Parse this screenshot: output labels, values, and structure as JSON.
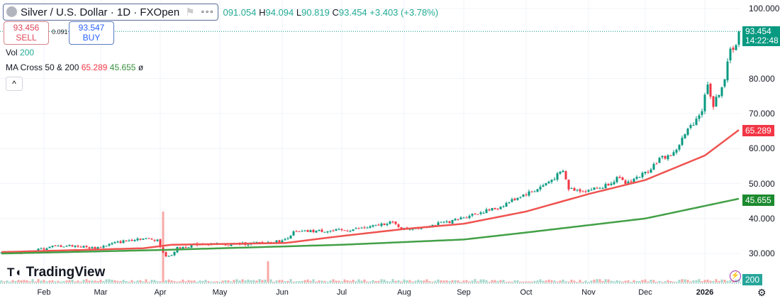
{
  "header": {
    "symbol": "Silver / U.S. Dollar · 1D · FXOpen",
    "ohlc_open": "091.054",
    "ohlc_high_label": "H",
    "ohlc_high": "94.094",
    "ohlc_low_label": "L",
    "ohlc_low": "90.819",
    "ohlc_close_label": "C",
    "ohlc_close": "93.454",
    "change": "+3.403 (+3.78%)",
    "more": "∘∘∘"
  },
  "trade": {
    "sell_price": "93.456",
    "sell_label": "SELL",
    "spread": "0.091",
    "buy_price": "93.547",
    "buy_label": "BUY"
  },
  "legend": {
    "vol_label": "Vol",
    "vol_value": "200",
    "ma_label": "MA Cross 50 & 200",
    "ma50": "65.289",
    "ma200": "45.655",
    "ma_extra": "ø",
    "collapse": "^"
  },
  "price_tag": {
    "price": "93.454",
    "countdown": "14:22:48"
  },
  "ma50_tag": "65.289",
  "ma200_tag": "45.655",
  "vol_tag": "200",
  "brand": "TradingView",
  "colors": {
    "up": "#089981",
    "down": "#f23645",
    "ma50": "#ef5350",
    "ma200": "#43a047"
  },
  "chart_data": {
    "type": "candlestick",
    "title": "Silver / U.S. Dollar · 1D · FXOpen",
    "y_ticks": [
      "100.000",
      "80.000",
      "70.000",
      "60.000",
      "50.000",
      "40.000",
      "30.000"
    ],
    "y_tick_values": [
      100,
      80,
      70,
      60,
      50,
      40,
      30
    ],
    "ylim": [
      30,
      100
    ],
    "x_ticks": [
      "Feb",
      "Mar",
      "Apr",
      "May",
      "Jun",
      "Jul",
      "Aug",
      "Sep",
      "Oct",
      "Nov",
      "Dec",
      "2026"
    ],
    "x_tick_days": [
      15,
      35,
      56,
      77,
      99,
      120,
      142,
      163,
      185,
      207,
      227,
      248
    ],
    "total_days": 261,
    "close_anchors": [
      [
        0,
        30.2
      ],
      [
        10,
        30.5
      ],
      [
        18,
        32
      ],
      [
        25,
        32.3
      ],
      [
        33,
        31.5
      ],
      [
        40,
        33
      ],
      [
        48,
        34.3
      ],
      [
        55,
        34
      ],
      [
        57,
        30
      ],
      [
        59,
        29
      ],
      [
        62,
        31.5
      ],
      [
        70,
        32.8
      ],
      [
        80,
        32.5
      ],
      [
        90,
        33
      ],
      [
        99,
        33.5
      ],
      [
        103,
        36
      ],
      [
        112,
        36.5
      ],
      [
        120,
        36.5
      ],
      [
        130,
        37.5
      ],
      [
        137,
        39
      ],
      [
        142,
        37
      ],
      [
        150,
        37.8
      ],
      [
        160,
        39.5
      ],
      [
        165,
        41
      ],
      [
        175,
        43
      ],
      [
        183,
        46.5
      ],
      [
        188,
        48
      ],
      [
        193,
        50.5
      ],
      [
        198,
        53.5
      ],
      [
        200,
        48.5
      ],
      [
        206,
        48
      ],
      [
        212,
        49
      ],
      [
        217,
        51.5
      ],
      [
        220,
        50
      ],
      [
        227,
        53
      ],
      [
        232,
        57
      ],
      [
        237,
        58.5
      ],
      [
        241,
        64
      ],
      [
        244,
        67.5
      ],
      [
        247,
        71
      ],
      [
        249,
        79
      ],
      [
        251,
        72
      ],
      [
        253,
        76
      ],
      [
        255,
        80
      ],
      [
        257,
        88
      ],
      [
        259,
        90
      ],
      [
        260,
        93.454
      ]
    ],
    "ma50_anchors": [
      [
        0,
        30.4
      ],
      [
        50,
        31.5
      ],
      [
        60,
        32.5
      ],
      [
        100,
        33
      ],
      [
        120,
        35
      ],
      [
        142,
        37
      ],
      [
        163,
        38.5
      ],
      [
        185,
        42
      ],
      [
        207,
        47
      ],
      [
        227,
        51
      ],
      [
        248,
        58
      ],
      [
        260,
        65.289
      ]
    ],
    "ma200_anchors": [
      [
        0,
        30
      ],
      [
        56,
        31
      ],
      [
        120,
        32.5
      ],
      [
        163,
        34
      ],
      [
        185,
        36
      ],
      [
        227,
        40
      ],
      [
        260,
        45.655
      ]
    ],
    "volume_spikes": [
      [
        57,
        100
      ],
      [
        94,
        30
      ]
    ]
  }
}
